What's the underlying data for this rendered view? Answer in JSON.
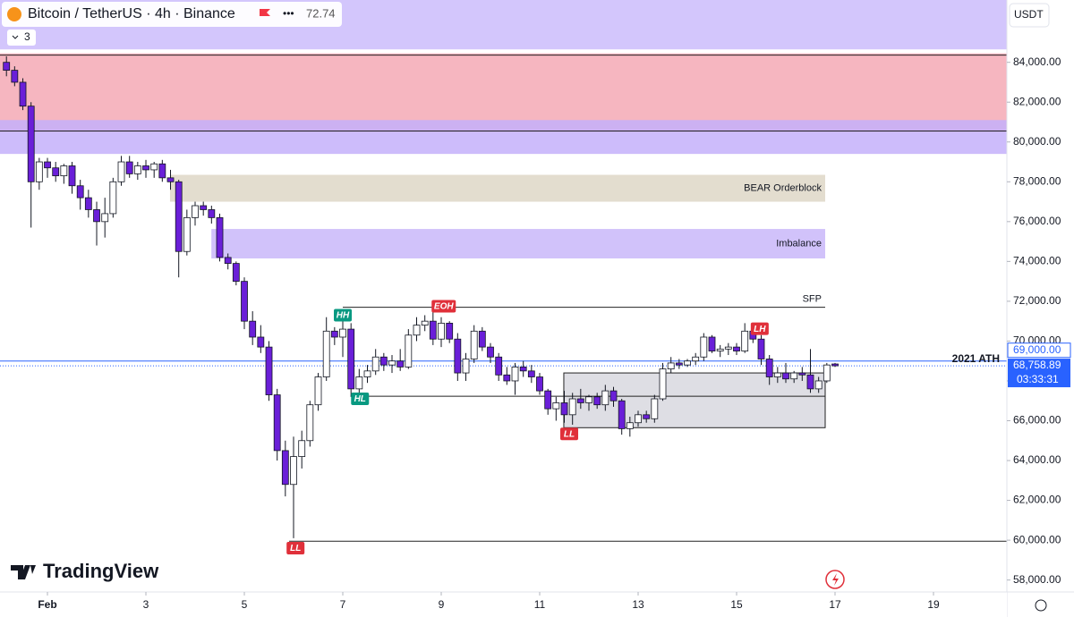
{
  "chart_data": {
    "type": "candlestick",
    "header": {
      "symbol": "Bitcoin / TetherUS · 4h · Binance",
      "indicator": "72.74",
      "count": "3"
    },
    "currency": "USDT",
    "watermark": "TradingView",
    "x": [
      0.167,
      0.333,
      0.5,
      0.667,
      0.833,
      1,
      1.167,
      1.333,
      1.5,
      1.667,
      1.833,
      2,
      2.167,
      2.333,
      2.5,
      2.667,
      2.833,
      3,
      3.167,
      3.333,
      3.5,
      3.667,
      3.833,
      4,
      4.167,
      4.333,
      4.5,
      4.667,
      4.833,
      5,
      5.167,
      5.333,
      5.5,
      5.667,
      5.833,
      6,
      6.167,
      6.333,
      6.5,
      6.667,
      6.833,
      7,
      7.167,
      7.333,
      7.5,
      7.667,
      7.833,
      8,
      8.167,
      8.333,
      8.5,
      8.667,
      8.833,
      9,
      9.167,
      9.333,
      9.5,
      9.667,
      9.833,
      10,
      10.167,
      10.333,
      10.5,
      10.667,
      10.833,
      11,
      11.167,
      11.333,
      11.5,
      11.667,
      11.833,
      12,
      12.167,
      12.333,
      12.5,
      12.667,
      12.833,
      13,
      13.167,
      13.333,
      13.5,
      13.667,
      13.833,
      14,
      14.167,
      14.333,
      14.5,
      14.667,
      14.833,
      15,
      15.167,
      15.333,
      15.5,
      15.667,
      15.833,
      16,
      16.167,
      16.333,
      16.5,
      16.667,
      16.833,
      17
    ],
    "open": [
      84000,
      83600,
      83000,
      81800,
      78000,
      79000,
      78700,
      78300,
      78800,
      77800,
      77200,
      76600,
      76000,
      76400,
      78000,
      79000,
      78400,
      78800,
      78600,
      78900,
      78200,
      78000,
      74500,
      76200,
      76800,
      76600,
      76200,
      74200,
      73900,
      73000,
      71000,
      70200,
      69700,
      67300,
      64500,
      62800,
      64200,
      65000,
      66800,
      68200,
      70500,
      70200,
      70600,
      67600,
      68200,
      68500,
      69200,
      68800,
      69000,
      68700,
      70300,
      70800,
      71000,
      70100,
      70900,
      70100,
      68400,
      69100,
      70500,
      69700,
      69200,
      68300,
      68000,
      68700,
      68500,
      68200,
      67500,
      66600,
      66900,
      66300,
      67100,
      66900,
      67200,
      66800,
      67500,
      67000,
      65600,
      65900,
      66300,
      66100,
      67100,
      68600,
      68900,
      68800,
      69000,
      69200,
      70200,
      69500,
      69600,
      69700,
      69500,
      70500,
      70100,
      69100,
      68200,
      68400,
      68100,
      68400,
      68300,
      67600,
      68000,
      68850
    ],
    "high": [
      84300,
      83800,
      83200,
      82000,
      79200,
      79200,
      79000,
      78900,
      79000,
      78100,
      77600,
      77000,
      77200,
      78200,
      79300,
      79300,
      79000,
      79100,
      79000,
      79100,
      78600,
      78100,
      76600,
      77000,
      77000,
      76800,
      76400,
      74400,
      74000,
      73200,
      71500,
      70800,
      70000,
      67600,
      65000,
      65200,
      65500,
      67000,
      68400,
      71200,
      70700,
      71000,
      70900,
      68600,
      68800,
      69600,
      69400,
      69300,
      69600,
      70600,
      71200,
      71300,
      71500,
      71200,
      71000,
      70400,
      69400,
      70800,
      70700,
      69900,
      69400,
      68700,
      68900,
      69000,
      68800,
      68400,
      67600,
      67200,
      67500,
      67400,
      67600,
      67300,
      67400,
      67800,
      67700,
      67100,
      66200,
      66500,
      66500,
      67300,
      68900,
      69200,
      69100,
      69100,
      69400,
      70400,
      70300,
      69800,
      69900,
      69900,
      70900,
      70900,
      70300,
      69300,
      68700,
      68900,
      68500,
      68700,
      69600,
      68200,
      68900,
      68900
    ],
    "low": [
      83300,
      82800,
      81600,
      75700,
      77600,
      78200,
      78000,
      77900,
      77400,
      76600,
      76200,
      74800,
      75200,
      76200,
      77800,
      78200,
      78100,
      78200,
      78200,
      78000,
      77600,
      73200,
      74300,
      75800,
      76300,
      75900,
      74000,
      73600,
      72800,
      70600,
      69800,
      69400,
      67000,
      64000,
      62200,
      60100,
      63600,
      64700,
      66500,
      68000,
      69800,
      69200,
      67200,
      67200,
      67900,
      68300,
      68500,
      68400,
      68500,
      68600,
      70000,
      70500,
      69800,
      69700,
      69900,
      68000,
      68000,
      68900,
      69500,
      68900,
      68000,
      67800,
      67300,
      68200,
      67900,
      67300,
      66300,
      66000,
      65900,
      65800,
      66600,
      66500,
      66600,
      66500,
      66700,
      65300,
      65200,
      65700,
      65900,
      65900,
      67000,
      68400,
      68600,
      68700,
      68800,
      69000,
      69400,
      69200,
      69300,
      69300,
      69400,
      69900,
      68800,
      67800,
      67900,
      67900,
      67900,
      68000,
      67400,
      67400,
      67900,
      68700
    ],
    "close": [
      83600,
      83000,
      81800,
      78000,
      79000,
      78700,
      78300,
      78800,
      77800,
      77200,
      76600,
      76000,
      76400,
      78000,
      79000,
      78400,
      78800,
      78600,
      78900,
      78200,
      78000,
      74500,
      76200,
      76800,
      76600,
      76200,
      74200,
      73900,
      73000,
      71000,
      70200,
      69700,
      67300,
      64500,
      62800,
      64200,
      65000,
      66800,
      68200,
      70500,
      70200,
      70600,
      67600,
      68200,
      68500,
      69200,
      68800,
      69000,
      68700,
      70300,
      70800,
      71000,
      70100,
      70900,
      70100,
      68400,
      69100,
      70500,
      69700,
      69200,
      68300,
      68000,
      68700,
      68500,
      68200,
      67500,
      66600,
      66900,
      66300,
      67100,
      66900,
      67200,
      66800,
      67500,
      67000,
      65600,
      65900,
      66300,
      66100,
      67100,
      68600,
      68900,
      68800,
      69000,
      69200,
      70200,
      69500,
      69600,
      69700,
      69500,
      70500,
      70100,
      69100,
      68200,
      68400,
      68100,
      68400,
      68300,
      67600,
      68000,
      68800,
      68758.89
    ],
    "up_color": "#ffffff",
    "down_color": "#6a1fd8",
    "xlim": [
      0.036,
      20.491
    ],
    "ylim": [
      57400,
      87130
    ],
    "xticks": [
      {
        "value": 1,
        "label": "Feb"
      },
      3,
      5,
      7,
      9,
      11,
      13,
      15,
      17,
      19
    ],
    "yticks": [
      {
        "value": 58000,
        "label": "58,000.00"
      },
      {
        "value": 60000,
        "label": "60,000.00"
      },
      {
        "value": 62000,
        "label": "62,000.00"
      },
      {
        "value": 64000,
        "label": "64,000.00"
      },
      {
        "value": 66000,
        "label": "66,000.00"
      },
      {
        "value": 68000,
        "label": "68,000.00"
      },
      {
        "value": 70000,
        "label": "70,000.00"
      },
      {
        "value": 72000,
        "label": "72,000.00"
      },
      {
        "value": 74000,
        "label": "74,000.00"
      },
      {
        "value": 76000,
        "label": "76,000.00"
      },
      {
        "value": 78000,
        "label": "78,000.00"
      },
      {
        "value": 80000,
        "label": "80,000.00"
      },
      {
        "value": 82000,
        "label": "82,000.00"
      },
      {
        "value": 84000,
        "label": "84,000.00"
      }
    ],
    "zones": [
      {
        "top": 87130,
        "bottom": 84650,
        "start": 0.036,
        "end": 20.491,
        "color": "#cbbcfb"
      },
      {
        "top": 84450,
        "bottom": 80500,
        "start": 0.036,
        "end": 20.491,
        "color": "#f5a9b5"
      },
      {
        "top": 81100,
        "bottom": 79400,
        "start": 0.036,
        "end": 20.491,
        "color": "#c4b0fa"
      },
      {
        "label": "BEAR Orderblock",
        "top": 78350,
        "bottom": 77000,
        "start": 3.49,
        "end": 16.8,
        "color": "#ded7c7"
      },
      {
        "label": "Imbalance",
        "top": 75630,
        "bottom": 74150,
        "start": 4.33,
        "end": 16.8,
        "color": "#c9b7f9"
      },
      {
        "top": 68400,
        "bottom": 65650,
        "start": 11.49,
        "end": 16.8,
        "color": "#d8d8df",
        "border": "#222222"
      }
    ],
    "lines": [
      {
        "value": 84360,
        "start": 0.036,
        "end": 20.491,
        "color": "#222222"
      },
      {
        "value": 80550,
        "start": 0.036,
        "end": 20.491,
        "color": "#222222"
      },
      {
        "label": "SFP",
        "value": 71700,
        "start": 7.0,
        "end": 16.8,
        "color": "#222222"
      },
      {
        "value": 67230,
        "start": 7.16,
        "end": 16.8,
        "color": "#222222"
      },
      {
        "value": 59950,
        "start": 5.91,
        "end": 20.491,
        "color": "#222222"
      },
      {
        "label": "2021 ATH",
        "value": 69000,
        "start": 0.036,
        "end": 20.491,
        "color": "#2962ff"
      }
    ],
    "markers": [
      {
        "label": "HH",
        "x": 7.0,
        "value": 71300,
        "color": "#089981"
      },
      {
        "label": "HL",
        "x": 7.35,
        "value": 67100,
        "color": "#089981"
      },
      {
        "label": "EOH",
        "x": 9.05,
        "value": 71750,
        "color": "#e0303a"
      },
      {
        "label": "LL",
        "x": 11.6,
        "value": 65340,
        "color": "#e0303a"
      },
      {
        "label": "LH",
        "x": 15.47,
        "value": 70620,
        "color": "#e0303a"
      },
      {
        "label": "LL",
        "x": 6.04,
        "value": 59600,
        "color": "#e0303a"
      }
    ],
    "ath_tag": {
      "value": 69000,
      "label": "69,000.00"
    },
    "last_price": {
      "value": 68758.89,
      "label": "68,758.89",
      "countdown": "03:33:31"
    }
  }
}
